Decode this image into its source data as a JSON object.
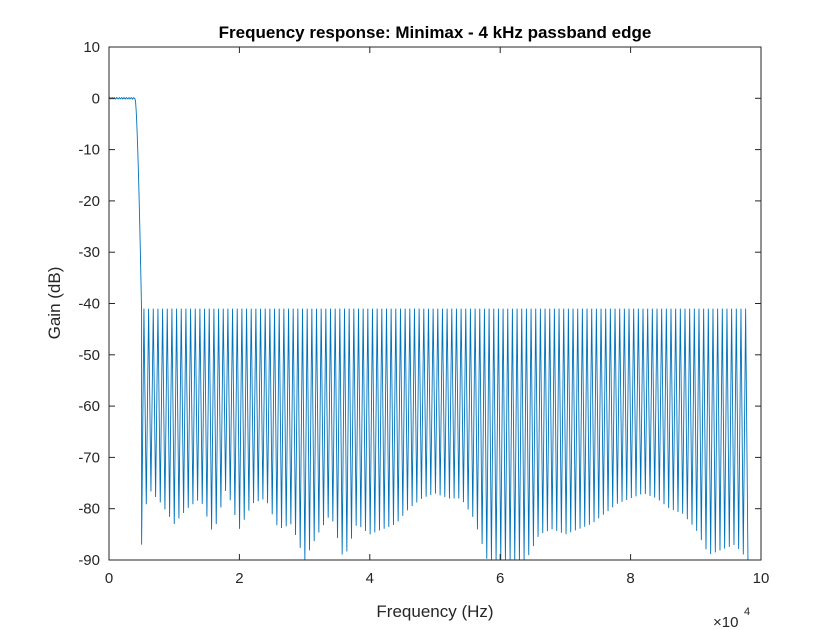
{
  "chart_data": {
    "type": "line",
    "title": "Frequency response: Minimax - 4 kHz passband edge",
    "xlabel": "Frequency (Hz)",
    "ylabel": "Gain (dB)",
    "x_multiplier": {
      "base": "×10",
      "exponent": "4"
    },
    "xlim": [
      0,
      100000
    ],
    "ylim": [
      -90,
      10
    ],
    "x_ticks": [
      0,
      20000,
      40000,
      60000,
      80000,
      100000
    ],
    "x_tick_labels": [
      "0",
      "2",
      "4",
      "6",
      "8",
      "10"
    ],
    "y_ticks": [
      10,
      0,
      -10,
      -20,
      -30,
      -40,
      -50,
      -60,
      -70,
      -80,
      -90
    ],
    "y_tick_labels": [
      "10",
      "0",
      "-10",
      "-20",
      "-30",
      "-40",
      "-50",
      "-60",
      "-70",
      "-80",
      "-90"
    ],
    "grid": false,
    "series": [
      {
        "color": "#0072BD",
        "description_points": {
          "passband": {
            "x_range": [
              0,
              4000
            ],
            "gain_db": 0
          },
          "transition": {
            "x_range": [
              4000,
              5000
            ],
            "gain_db": [
              0,
              -42
            ]
          },
          "stopband": {
            "x_range": [
              5000,
              98000
            ],
            "peak_gain_db": -41,
            "ripple_lobes": 130
          }
        },
        "stopband_null_envelope": {
          "x": [
            5000,
            6000,
            8000,
            10000,
            12000,
            14000,
            16000,
            18000,
            20000,
            22000,
            24000,
            26000,
            28000,
            30000,
            32000,
            34000,
            36000,
            38000,
            40000,
            42000,
            44000,
            46000,
            48000,
            50000,
            52000,
            54000,
            56000,
            58000,
            60000,
            62000,
            64000,
            66000,
            68000,
            70000,
            72000,
            74000,
            76000,
            78000,
            80000,
            82000,
            84000,
            86000,
            88000,
            90000,
            92000,
            94000,
            96000,
            98000
          ],
          "y": [
            -87,
            -76,
            -79,
            -83,
            -80,
            -78,
            -85,
            -76,
            -84,
            -79,
            -78,
            -84,
            -83,
            -90,
            -85,
            -81,
            -90,
            -83,
            -85,
            -84,
            -83,
            -80,
            -78,
            -77,
            -78,
            -78,
            -82,
            -90,
            -90,
            -90,
            -90,
            -85,
            -84,
            -85,
            -84,
            -83,
            -81,
            -79,
            -78,
            -77,
            -78,
            -80,
            -81,
            -84,
            -89,
            -88,
            -87,
            -90
          ]
        }
      }
    ]
  }
}
